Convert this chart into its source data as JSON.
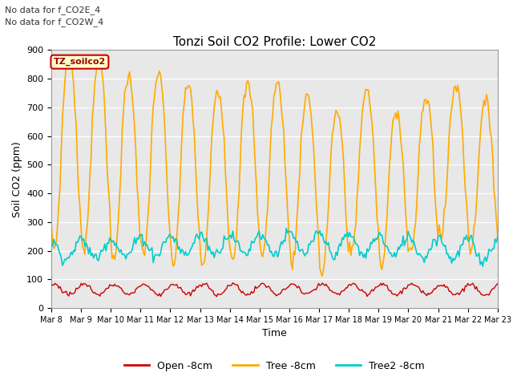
{
  "title": "Tonzi Soil CO2 Profile: Lower CO2",
  "xlabel": "Time",
  "ylabel": "Soil CO2 (ppm)",
  "ylim": [
    0,
    900
  ],
  "yticks": [
    0,
    100,
    200,
    300,
    400,
    500,
    600,
    700,
    800,
    900
  ],
  "note1": "No data for f_CO2E_4",
  "note2": "No data for f_CO2W_4",
  "legend_label": "TZ_soilco2",
  "series_labels": [
    "Open -8cm",
    "Tree -8cm",
    "Tree2 -8cm"
  ],
  "colors": [
    "#cc0000",
    "#ffaa00",
    "#00cccc"
  ],
  "linewidths": [
    1.0,
    1.2,
    1.2
  ],
  "plot_bg": "#e8e8e8",
  "n_days": 15,
  "n_points": 360,
  "tree_base": 480,
  "tree_amp": 280,
  "tree2_base": 200,
  "tree2_amp": 35,
  "open_base": 65,
  "open_amp": 18
}
